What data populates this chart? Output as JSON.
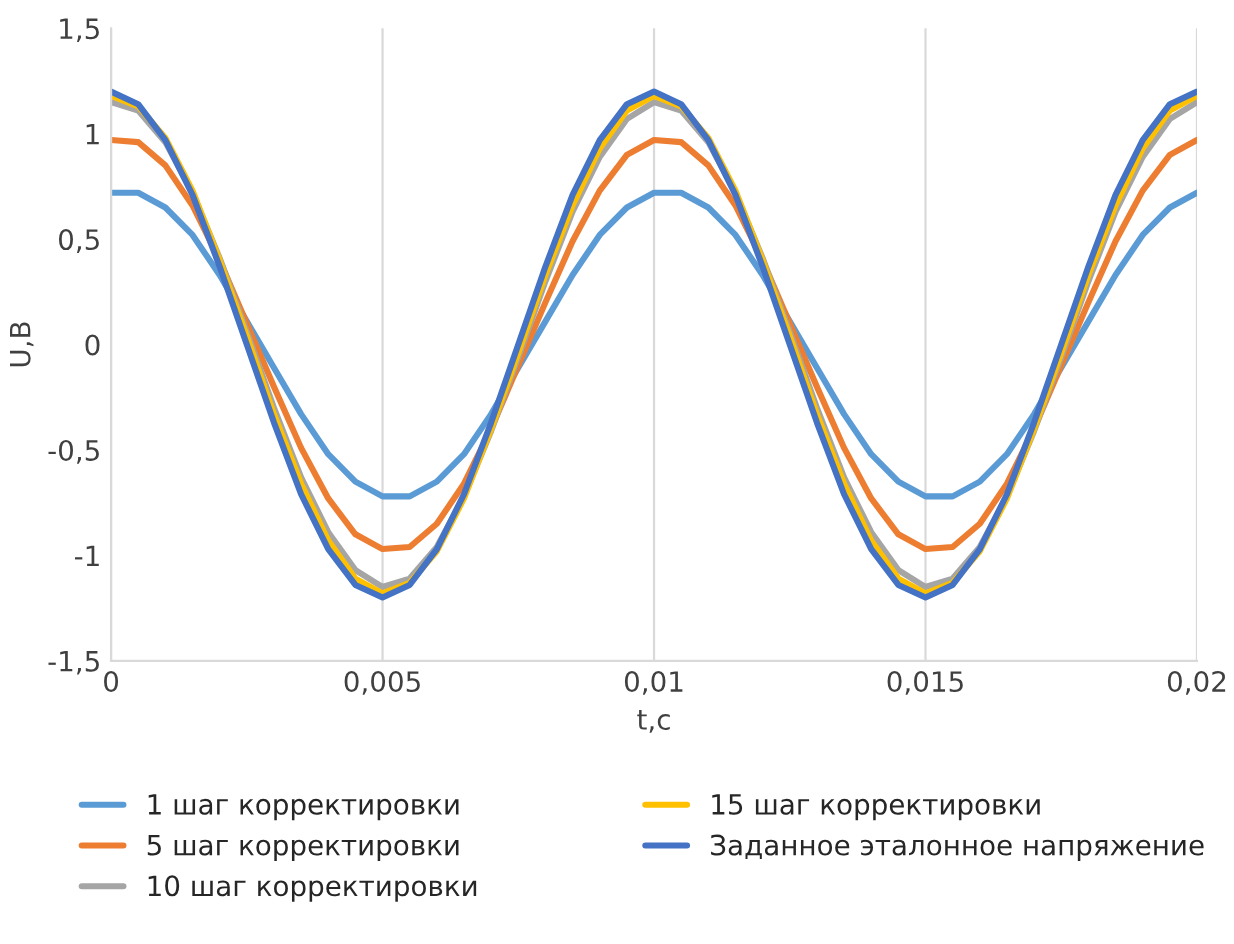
{
  "chart_data": {
    "type": "line",
    "xlabel": "t,c",
    "ylabel": "U,B",
    "x": [
      0,
      0.0005,
      0.001,
      0.0015,
      0.002,
      0.0025,
      0.003,
      0.0035,
      0.004,
      0.0045,
      0.005,
      0.0055,
      0.006,
      0.0065,
      0.007,
      0.0075,
      0.008,
      0.0085,
      0.009,
      0.0095,
      0.01,
      0.0105,
      0.011,
      0.0115,
      0.012,
      0.0125,
      0.013,
      0.0135,
      0.014,
      0.0145,
      0.015,
      0.0155,
      0.016,
      0.0165,
      0.017,
      0.0175,
      0.018,
      0.0185,
      0.019,
      0.0195,
      0.02
    ],
    "series": [
      {
        "name": "1 шаг корректировки",
        "color": "#5b9bd5",
        "values": [
          0.72,
          0.72,
          0.65,
          0.52,
          0.33,
          0.11,
          -0.11,
          -0.33,
          -0.52,
          -0.65,
          -0.72,
          -0.72,
          -0.65,
          -0.52,
          -0.33,
          -0.11,
          0.11,
          0.33,
          0.52,
          0.65,
          0.72,
          0.72,
          0.65,
          0.52,
          0.33,
          0.11,
          -0.11,
          -0.33,
          -0.52,
          -0.65,
          -0.72,
          -0.72,
          -0.65,
          -0.52,
          -0.33,
          -0.11,
          0.11,
          0.33,
          0.52,
          0.65,
          0.72
        ]
      },
      {
        "name": "5 шаг корректировки",
        "color": "#ed7d31",
        "values": [
          0.97,
          0.96,
          0.85,
          0.66,
          0.4,
          0.1,
          -0.2,
          -0.49,
          -0.73,
          -0.9,
          -0.97,
          -0.96,
          -0.85,
          -0.66,
          -0.4,
          -0.1,
          0.2,
          0.49,
          0.73,
          0.9,
          0.97,
          0.96,
          0.85,
          0.66,
          0.4,
          0.1,
          -0.2,
          -0.49,
          -0.73,
          -0.9,
          -0.97,
          -0.96,
          -0.85,
          -0.66,
          -0.4,
          -0.1,
          0.2,
          0.49,
          0.73,
          0.9,
          0.97
        ]
      },
      {
        "name": "10 шаг корректировки",
        "color": "#a5a5a5",
        "values": [
          1.15,
          1.11,
          0.96,
          0.72,
          0.41,
          0.06,
          -0.3,
          -0.63,
          -0.89,
          -1.07,
          -1.15,
          -1.11,
          -0.96,
          -0.72,
          -0.41,
          -0.06,
          0.3,
          0.63,
          0.89,
          1.07,
          1.15,
          1.11,
          0.96,
          0.72,
          0.41,
          0.06,
          -0.3,
          -0.63,
          -0.89,
          -1.07,
          -1.15,
          -1.11,
          -0.96,
          -0.72,
          -0.41,
          -0.06,
          0.3,
          0.63,
          0.89,
          1.07,
          1.15
        ]
      },
      {
        "name": "15 шаг корректировки",
        "color": "#ffc000",
        "values": [
          1.18,
          1.13,
          0.98,
          0.73,
          0.4,
          0.04,
          -0.33,
          -0.66,
          -0.93,
          -1.11,
          -1.18,
          -1.13,
          -0.98,
          -0.73,
          -0.4,
          -0.04,
          0.33,
          0.66,
          0.93,
          1.11,
          1.18,
          1.13,
          0.98,
          0.73,
          0.4,
          0.04,
          -0.33,
          -0.66,
          -0.93,
          -1.11,
          -1.18,
          -1.13,
          -0.98,
          -0.73,
          -0.4,
          -0.04,
          0.33,
          0.66,
          0.93,
          1.11,
          1.18
        ]
      },
      {
        "name": "Заданное эталонное напряжение",
        "color": "#4472c4",
        "values": [
          1.2,
          1.14,
          0.97,
          0.71,
          0.37,
          0,
          -0.37,
          -0.71,
          -0.97,
          -1.14,
          -1.2,
          -1.14,
          -0.97,
          -0.71,
          -0.37,
          0,
          0.37,
          0.71,
          0.97,
          1.14,
          1.2,
          1.14,
          0.97,
          0.71,
          0.37,
          0,
          -0.37,
          -0.71,
          -0.97,
          -1.14,
          -1.2,
          -1.14,
          -0.97,
          -0.71,
          -0.37,
          0,
          0.37,
          0.71,
          0.97,
          1.14,
          1.2
        ]
      }
    ],
    "xlim": [
      0,
      0.02
    ],
    "xticks": [
      0,
      {
        "value": 0.005,
        "label": "0,005"
      },
      {
        "value": 0.01,
        "label": "0,01"
      },
      {
        "value": 0.015,
        "label": "0,015"
      },
      {
        "value": 0.02,
        "label": "0,02"
      }
    ],
    "ylim": [
      -1.5,
      1.5
    ],
    "yticks": [
      {
        "value": -1.5,
        "label": "-1,5"
      },
      -1,
      {
        "value": -0.5,
        "label": "-0,5"
      },
      0,
      {
        "value": 0.5,
        "label": "0,5"
      },
      1,
      {
        "value": 1.5,
        "label": "1,5"
      }
    ],
    "grid": "x",
    "legend": "bottom",
    "marker": "none",
    "line_style": "solid"
  }
}
